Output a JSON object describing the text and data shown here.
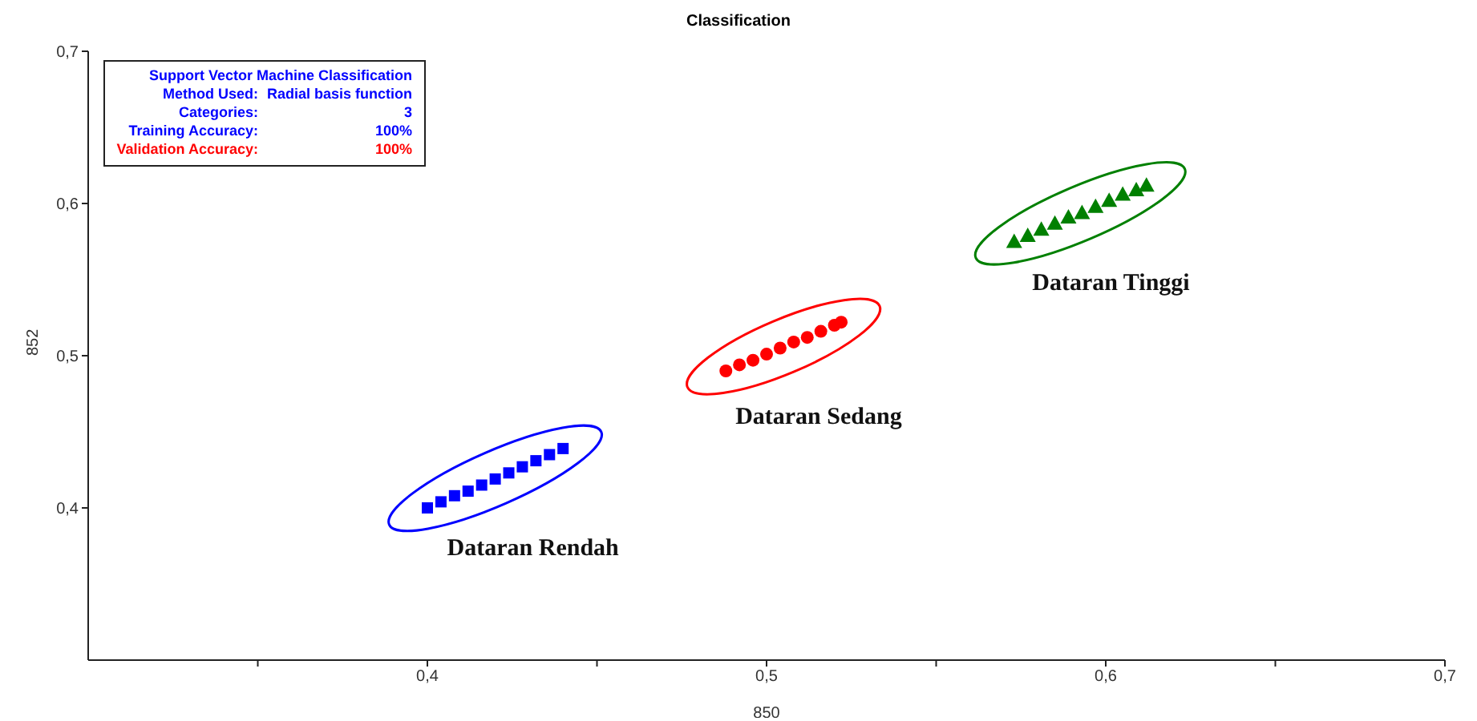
{
  "chart_data": {
    "type": "scatter",
    "title": "Classification",
    "xlabel": "850",
    "ylabel": "852",
    "xlim": [
      0.3,
      0.7
    ],
    "ylim": [
      0.3,
      0.7
    ],
    "xticks": [
      {
        "value": 0.35,
        "label": null
      },
      {
        "value": 0.4,
        "label": "0,4"
      },
      {
        "value": 0.45,
        "label": null
      },
      {
        "value": 0.5,
        "label": "0,5"
      },
      {
        "value": 0.55,
        "label": null
      },
      {
        "value": 0.6,
        "label": "0,6"
      },
      {
        "value": 0.65,
        "label": null
      },
      {
        "value": 0.7,
        "label": "0,7"
      }
    ],
    "yticks": [
      {
        "value": 0.4,
        "label": "0,4"
      },
      {
        "value": 0.5,
        "label": "0,5"
      },
      {
        "value": 0.6,
        "label": "0,6"
      },
      {
        "value": 0.7,
        "label": "0,7"
      }
    ],
    "grid": false,
    "legend": false,
    "annotations": [
      "Support Vector Machine Classification",
      "Method Used:",
      "Radial basis function",
      "Categories:",
      "3",
      "Training Accuracy:",
      "100%",
      "Validation Accuracy:",
      "100%"
    ],
    "series": [
      {
        "name": "Dataran Rendah",
        "color": "#0000ff",
        "marker": "square",
        "x": [
          0.4,
          0.404,
          0.408,
          0.412,
          0.416,
          0.42,
          0.424,
          0.428,
          0.432,
          0.436,
          0.44
        ],
        "values": [
          0.4,
          0.404,
          0.408,
          0.411,
          0.415,
          0.419,
          0.423,
          0.427,
          0.431,
          0.435,
          0.439
        ]
      },
      {
        "name": "Dataran Sedang",
        "color": "#ff0000",
        "marker": "circle",
        "x": [
          0.488,
          0.492,
          0.496,
          0.5,
          0.504,
          0.508,
          0.512,
          0.516,
          0.52,
          0.522
        ],
        "values": [
          0.49,
          0.494,
          0.497,
          0.501,
          0.505,
          0.509,
          0.512,
          0.516,
          0.52,
          0.522
        ]
      },
      {
        "name": "Dataran Tinggi",
        "color": "#008000",
        "marker": "triangle",
        "x": [
          0.573,
          0.577,
          0.581,
          0.585,
          0.589,
          0.593,
          0.597,
          0.601,
          0.605,
          0.609,
          0.612
        ],
        "values": [
          0.575,
          0.579,
          0.583,
          0.587,
          0.591,
          0.594,
          0.598,
          0.602,
          0.606,
          0.609,
          0.612
        ]
      }
    ]
  }
}
